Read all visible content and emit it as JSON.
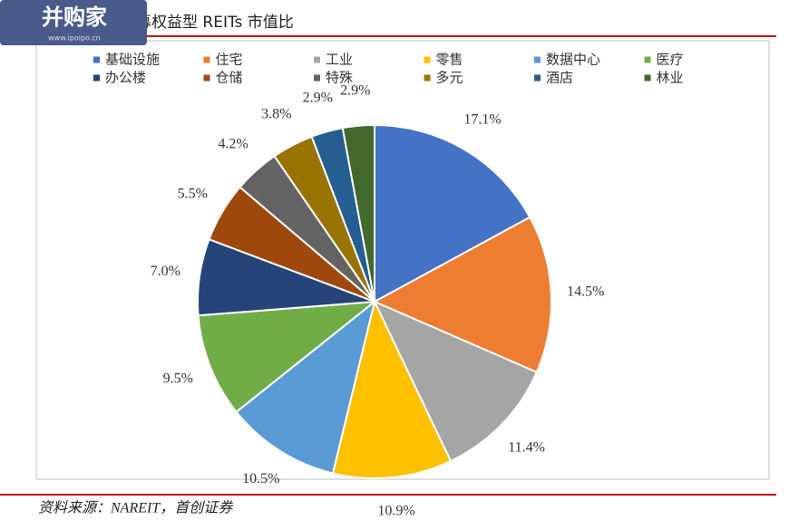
{
  "logo": {
    "name": "并购家",
    "url": "www.ipoipo.cn"
  },
  "chart_data": {
    "type": "pie",
    "title": "募权益型 REITs 市值比",
    "categories": [
      "基础设施",
      "住宅",
      "工业",
      "零售",
      "数据中心",
      "医疗",
      "办公楼",
      "仓储",
      "特殊",
      "多元",
      "酒店",
      "林业"
    ],
    "values": [
      17.1,
      14.5,
      11.4,
      10.9,
      10.5,
      9.5,
      7.0,
      5.5,
      4.2,
      3.8,
      2.9,
      2.9
    ],
    "value_labels": [
      "17.1%",
      "14.5%",
      "11.4%",
      "10.9%",
      "10.5%",
      "9.5%",
      "7.0%",
      "5.5%",
      "4.2%",
      "3.8%",
      "2.9%",
      "2.9%"
    ],
    "colors": [
      "#4472c4",
      "#ed7d31",
      "#a5a5a5",
      "#ffc000",
      "#5b9bd5",
      "#70ad47",
      "#264478",
      "#9e480e",
      "#636363",
      "#997300",
      "#255e91",
      "#43682b"
    ]
  },
  "source": "资料来源：NAREIT，首创证券"
}
